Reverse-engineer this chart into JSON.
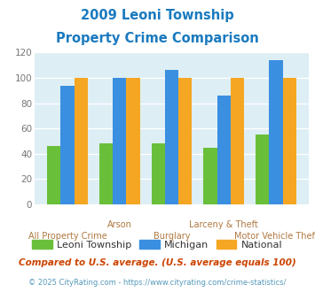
{
  "title_line1": "2009 Leoni Township",
  "title_line2": "Property Crime Comparison",
  "categories": [
    "All Property Crime",
    "Arson",
    "Burglary",
    "Larceny & Theft",
    "Motor Vehicle Theft"
  ],
  "leoni": [
    46,
    48,
    48,
    45,
    55
  ],
  "michigan": [
    94,
    100,
    106,
    86,
    114
  ],
  "national": [
    100,
    100,
    100,
    100,
    100
  ],
  "color_leoni": "#6abf3a",
  "color_michigan": "#3a8fe0",
  "color_national": "#f5a623",
  "color_title": "#1a7abf",
  "ylim": [
    0,
    120
  ],
  "yticks": [
    0,
    20,
    40,
    60,
    80,
    100,
    120
  ],
  "legend_labels": [
    "Leoni Township",
    "Michigan",
    "National"
  ],
  "footnote1": "Compared to U.S. average. (U.S. average equals 100)",
  "footnote2": "© 2025 CityRating.com - https://www.cityrating.com/crime-statistics/",
  "bg_color": "#ddeef5",
  "label_color": "#b07840",
  "footnote1_color": "#cc4400",
  "footnote2_color": "#5599bb"
}
